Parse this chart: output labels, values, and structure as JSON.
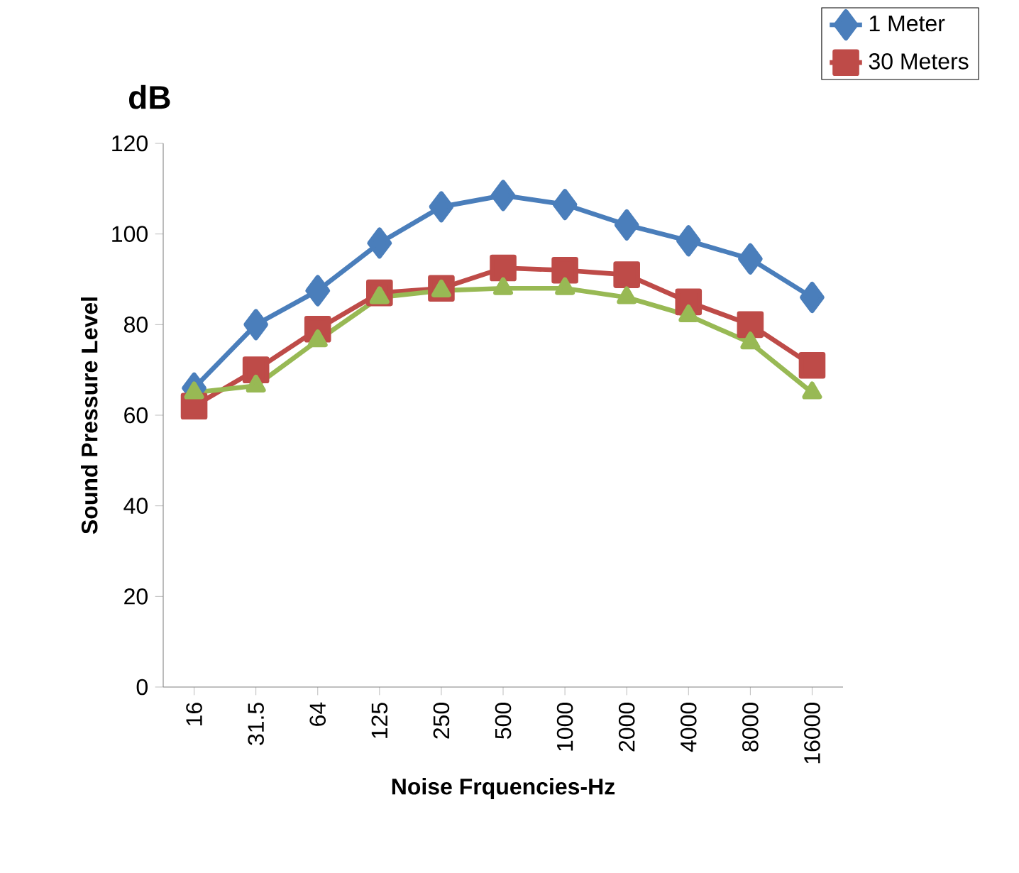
{
  "chart_data": {
    "type": "line",
    "title": "dB",
    "xlabel": "Noise Frquencies-Hz",
    "ylabel": "Sound Pressure Level",
    "categories": [
      "16",
      "31.5",
      "64",
      "125",
      "250",
      "500",
      "1000",
      "2000",
      "4000",
      "8000",
      "16000"
    ],
    "series": [
      {
        "name": "1 Meter",
        "color": "#4a7ebb",
        "marker": "diamond",
        "values": [
          66,
          80,
          87.5,
          98,
          106,
          108.5,
          106.5,
          102,
          98.5,
          94.5,
          86
        ]
      },
      {
        "name": "30 Meters",
        "color": "#be4b48",
        "marker": "square",
        "values": [
          62,
          70,
          79,
          87,
          88,
          92.5,
          92,
          91,
          85,
          80,
          71
        ]
      },
      {
        "color": "#98b954",
        "marker": "triangle",
        "values": [
          65,
          66.5,
          76.5,
          86,
          87.5,
          88,
          88,
          86,
          82,
          76,
          65
        ]
      }
    ],
    "ylim": [
      0,
      120
    ],
    "yticks": [
      0,
      20,
      40,
      60,
      80,
      100,
      120
    ],
    "legend": "top right",
    "line_style": "solid"
  }
}
